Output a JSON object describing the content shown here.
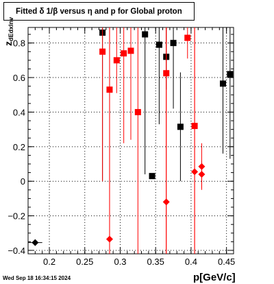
{
  "footer": {
    "timestamp": "Wed Sep 18 16:34:15 2024"
  },
  "chart_data": {
    "type": "scatter",
    "title": "Fitted δ 1/β versus η and p for Global proton",
    "xlabel": "p[GeV/c]",
    "ylabel": "z",
    "ylabel_subscript": "dEdxInv",
    "xlim": [
      0.17,
      0.46
    ],
    "ylim": [
      -0.42,
      0.89
    ],
    "grid": true,
    "x_ticks": [
      {
        "value": 0.2,
        "label": "0.2"
      },
      {
        "value": 0.25,
        "label": "0.25"
      },
      {
        "value": 0.3,
        "label": "0.3"
      },
      {
        "value": 0.35,
        "label": "0.35"
      },
      {
        "value": 0.4,
        "label": "0.4"
      },
      {
        "value": 0.45,
        "label": "0.45"
      }
    ],
    "y_ticks": [
      {
        "value": -0.4,
        "label": "−0.4"
      },
      {
        "value": -0.2,
        "label": "−0.2"
      },
      {
        "value": 0.0,
        "label": "0"
      },
      {
        "value": 0.2,
        "label": "0.2"
      },
      {
        "value": 0.4,
        "label": "0.4"
      },
      {
        "value": 0.6,
        "label": "0.6"
      },
      {
        "value": 0.8,
        "label": "0.8"
      }
    ],
    "series": [
      {
        "marker": "square",
        "color": "#000000",
        "points": [
          {
            "x": 0.275,
            "y": 0.86,
            "ylow": 0.0,
            "yhigh": 0.89
          },
          {
            "x": 0.335,
            "y": 0.85,
            "ylow": 0.04,
            "yhigh": 0.89
          },
          {
            "x": 0.345,
            "y": 0.03,
            "ylow": 0.03,
            "yhigh": 0.03
          },
          {
            "x": 0.355,
            "y": 0.79,
            "ylow": 0.33,
            "yhigh": 0.89
          },
          {
            "x": 0.365,
            "y": 0.72,
            "ylow": 0.53,
            "yhigh": 0.89
          },
          {
            "x": 0.375,
            "y": 0.8,
            "ylow": 0.42,
            "yhigh": 0.89
          },
          {
            "x": 0.385,
            "y": 0.315,
            "ylow": 0.0,
            "yhigh": 0.63
          },
          {
            "x": 0.445,
            "y": 0.565,
            "ylow": 0.16,
            "yhigh": 0.89
          },
          {
            "x": 0.455,
            "y": 0.62,
            "ylow": 0.13,
            "yhigh": 0.89
          }
        ]
      },
      {
        "marker": "square",
        "color": "#ff0000",
        "points": [
          {
            "x": 0.275,
            "y": 0.75,
            "ylow": 0.0,
            "yhigh": 0.89
          },
          {
            "x": 0.285,
            "y": 0.53,
            "ylow": -0.42,
            "yhigh": 0.89
          },
          {
            "x": 0.295,
            "y": 0.7,
            "ylow": 0.51,
            "yhigh": 0.89
          },
          {
            "x": 0.305,
            "y": 0.74,
            "ylow": 0.22,
            "yhigh": 0.89
          },
          {
            "x": 0.315,
            "y": 0.755,
            "ylow": 0.24,
            "yhigh": 0.89
          },
          {
            "x": 0.325,
            "y": 0.4,
            "ylow": -0.42,
            "yhigh": 0.89
          },
          {
            "x": 0.365,
            "y": 0.625,
            "ylow": -0.42,
            "yhigh": 0.89
          },
          {
            "x": 0.395,
            "y": 0.83,
            "ylow": 0.71,
            "yhigh": 0.89
          },
          {
            "x": 0.405,
            "y": 0.32,
            "ylow": -0.42,
            "yhigh": 0.89
          }
        ]
      },
      {
        "marker": "diamond",
        "color": "#000000",
        "points": [
          {
            "x": 0.18,
            "y": -0.355,
            "ylow": -0.355,
            "yhigh": -0.355,
            "xerr": 0.01
          }
        ]
      },
      {
        "marker": "diamond",
        "color": "#ff0000",
        "points": [
          {
            "x": 0.285,
            "y": -0.335,
            "ylow": -0.42,
            "yhigh": 0.89
          },
          {
            "x": 0.365,
            "y": -0.12,
            "ylow": -0.42,
            "yhigh": 0.89
          },
          {
            "x": 0.405,
            "y": 0.055,
            "ylow": -0.42,
            "yhigh": 0.89
          },
          {
            "x": 0.415,
            "y": 0.085,
            "ylow": -0.05,
            "yhigh": 0.22
          },
          {
            "x": 0.415,
            "y": 0.04,
            "ylow": -0.04,
            "yhigh": 0.12
          }
        ]
      }
    ]
  }
}
